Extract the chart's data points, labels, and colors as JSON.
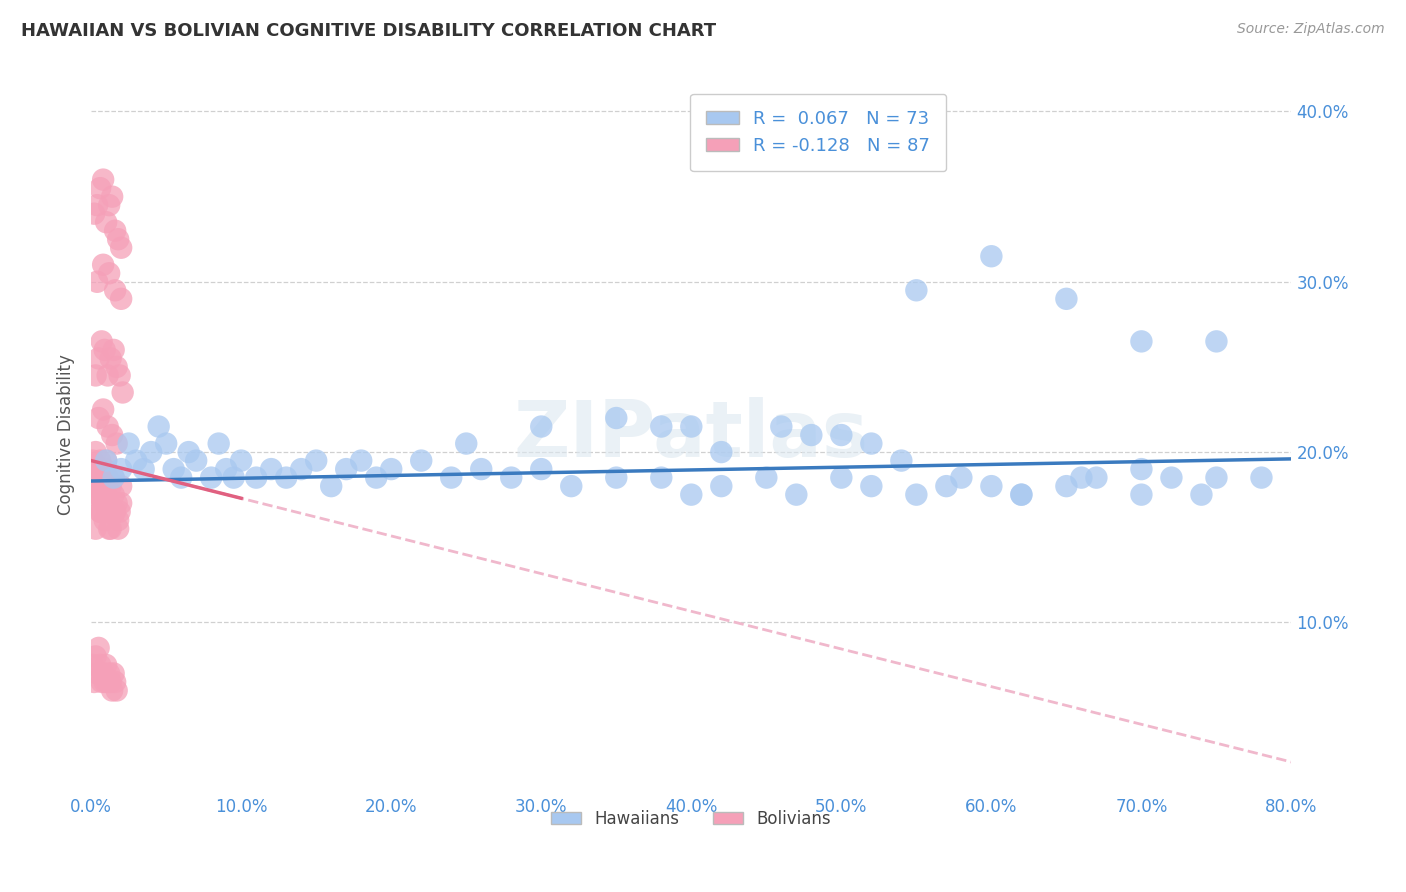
{
  "title": "HAWAIIAN VS BOLIVIAN COGNITIVE DISABILITY CORRELATION CHART",
  "source": "Source: ZipAtlas.com",
  "ylabel": "Cognitive Disability",
  "watermark": "ZIPatlas",
  "hawaiian_R": 0.067,
  "hawaiian_N": 73,
  "bolivian_R": -0.128,
  "bolivian_N": 87,
  "hawaiian_color": "#a8c8f0",
  "bolivian_color": "#f5a0b8",
  "hawaiian_line_color": "#3a7abf",
  "bolivian_line_color": "#e06080",
  "bolivian_dashed_color": "#f0b8cc",
  "xlim": [
    0.0,
    0.8
  ],
  "ylim": [
    0.0,
    0.42
  ],
  "hawaiian_x": [
    0.01,
    0.015,
    0.02,
    0.025,
    0.03,
    0.035,
    0.04,
    0.045,
    0.05,
    0.055,
    0.06,
    0.065,
    0.07,
    0.08,
    0.085,
    0.09,
    0.095,
    0.1,
    0.11,
    0.12,
    0.13,
    0.14,
    0.15,
    0.16,
    0.17,
    0.18,
    0.19,
    0.2,
    0.22,
    0.24,
    0.26,
    0.28,
    0.3,
    0.32,
    0.35,
    0.38,
    0.4,
    0.42,
    0.45,
    0.47,
    0.5,
    0.52,
    0.55,
    0.57,
    0.6,
    0.62,
    0.65,
    0.67,
    0.7,
    0.72,
    0.75,
    0.3,
    0.35,
    0.4,
    0.25,
    0.55,
    0.6,
    0.65,
    0.7,
    0.38,
    0.48,
    0.52,
    0.75,
    0.42,
    0.46,
    0.5,
    0.54,
    0.58,
    0.62,
    0.66,
    0.7,
    0.74,
    0.78
  ],
  "hawaiian_y": [
    0.195,
    0.185,
    0.19,
    0.205,
    0.195,
    0.19,
    0.2,
    0.215,
    0.205,
    0.19,
    0.185,
    0.2,
    0.195,
    0.185,
    0.205,
    0.19,
    0.185,
    0.195,
    0.185,
    0.19,
    0.185,
    0.19,
    0.195,
    0.18,
    0.19,
    0.195,
    0.185,
    0.19,
    0.195,
    0.185,
    0.19,
    0.185,
    0.19,
    0.18,
    0.185,
    0.185,
    0.175,
    0.18,
    0.185,
    0.175,
    0.185,
    0.18,
    0.175,
    0.18,
    0.18,
    0.175,
    0.18,
    0.185,
    0.175,
    0.185,
    0.185,
    0.215,
    0.22,
    0.215,
    0.205,
    0.295,
    0.315,
    0.29,
    0.265,
    0.215,
    0.21,
    0.205,
    0.265,
    0.2,
    0.215,
    0.21,
    0.195,
    0.185,
    0.175,
    0.185,
    0.19,
    0.175,
    0.185
  ],
  "bolivian_x": [
    0.001,
    0.002,
    0.003,
    0.004,
    0.005,
    0.006,
    0.007,
    0.008,
    0.009,
    0.01,
    0.011,
    0.012,
    0.013,
    0.014,
    0.015,
    0.016,
    0.017,
    0.018,
    0.019,
    0.02,
    0.003,
    0.005,
    0.007,
    0.009,
    0.011,
    0.013,
    0.015,
    0.017,
    0.019,
    0.021,
    0.002,
    0.004,
    0.006,
    0.008,
    0.01,
    0.012,
    0.014,
    0.016,
    0.018,
    0.02,
    0.003,
    0.006,
    0.009,
    0.012,
    0.015,
    0.018,
    0.004,
    0.008,
    0.012,
    0.016,
    0.02,
    0.005,
    0.01,
    0.015,
    0.02,
    0.005,
    0.008,
    0.011,
    0.014,
    0.017,
    0.001,
    0.003,
    0.005,
    0.007,
    0.009,
    0.011,
    0.013,
    0.002,
    0.004,
    0.006,
    0.001,
    0.002,
    0.003,
    0.004,
    0.005,
    0.006,
    0.007,
    0.008,
    0.009,
    0.01,
    0.011,
    0.012,
    0.013,
    0.014,
    0.015,
    0.016,
    0.017
  ],
  "bolivian_y": [
    0.195,
    0.185,
    0.2,
    0.19,
    0.18,
    0.195,
    0.185,
    0.175,
    0.19,
    0.175,
    0.185,
    0.17,
    0.18,
    0.165,
    0.175,
    0.165,
    0.17,
    0.16,
    0.165,
    0.17,
    0.245,
    0.255,
    0.265,
    0.26,
    0.245,
    0.255,
    0.26,
    0.25,
    0.245,
    0.235,
    0.34,
    0.345,
    0.355,
    0.36,
    0.335,
    0.345,
    0.35,
    0.33,
    0.325,
    0.32,
    0.155,
    0.165,
    0.16,
    0.155,
    0.165,
    0.155,
    0.3,
    0.31,
    0.305,
    0.295,
    0.29,
    0.19,
    0.195,
    0.185,
    0.18,
    0.22,
    0.225,
    0.215,
    0.21,
    0.205,
    0.175,
    0.185,
    0.175,
    0.165,
    0.17,
    0.165,
    0.155,
    0.18,
    0.175,
    0.165,
    0.075,
    0.065,
    0.08,
    0.07,
    0.085,
    0.075,
    0.065,
    0.07,
    0.065,
    0.075,
    0.065,
    0.07,
    0.065,
    0.06,
    0.07,
    0.065,
    0.06
  ],
  "xtick_vals": [
    0.0,
    0.1,
    0.2,
    0.3,
    0.4,
    0.5,
    0.6,
    0.7,
    0.8
  ],
  "xtick_labels": [
    "0.0%",
    "10.0%",
    "20.0%",
    "30.0%",
    "40.0%",
    "50.0%",
    "60.0%",
    "70.0%",
    "80.0%"
  ],
  "ytick_vals": [
    0.1,
    0.2,
    0.3,
    0.4
  ],
  "ytick_labels": [
    "10.0%",
    "20.0%",
    "30.0%",
    "40.0%"
  ]
}
